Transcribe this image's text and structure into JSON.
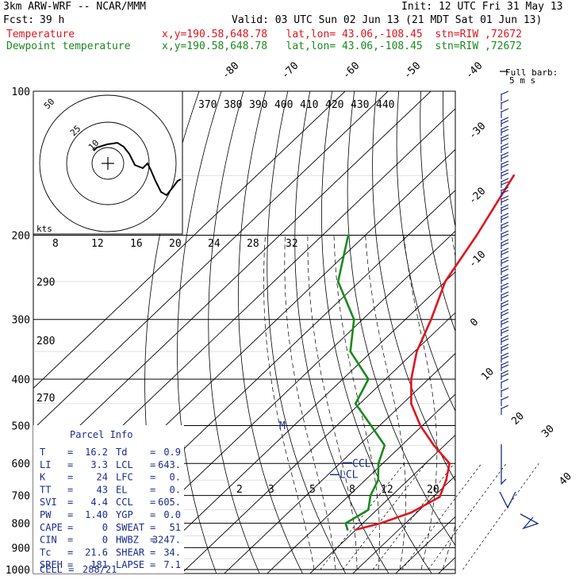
{
  "header": {
    "title": "3km ARW-WRF -- NCAR/MMM",
    "init": "Init: 12 UTC Fri 31 May 13",
    "fcst_label": "Fcst:",
    "fcst_value": "39 h",
    "valid": "Valid: 03 UTC Sun 02 Jun 13 (21 MDT Sat 01 Jun 13)",
    "temp_label": "Temperature",
    "dew_label": "Dewpoint temperature",
    "temp_info": "x,y=190.58,648.78   lat,lon= 43.06,-108.45  stn=RIW ,72672",
    "dew_info": "x,y=190.58,648.78   lat,lon= 43.06,-108.45  stn=RIW ,72672"
  },
  "colors": {
    "temperature": "#e0141e",
    "dewpoint": "#198a1e",
    "text": "#1a2b8c",
    "barb": "#1a2b8c"
  },
  "chart_data": {
    "type": "line",
    "title": "",
    "pressure_ticks": [
      "100",
      "200",
      "300",
      "400",
      "500",
      "600",
      "700",
      "800",
      "900",
      "1000"
    ],
    "isotherm_labels": [
      "-80",
      "-70",
      "-60",
      "-50",
      "-40",
      "-30",
      "-20",
      "-10",
      "0",
      "10",
      "20",
      "30",
      "40"
    ],
    "theta_labels": [
      "370",
      "380",
      "390",
      "400",
      "410",
      "420",
      "430",
      "440"
    ],
    "theta_left_labels": [
      "290",
      "280",
      "270"
    ],
    "mixing_ratio_labels": [
      "2",
      "3",
      "5",
      "8",
      "12",
      "20"
    ],
    "hodograph": {
      "rings_labels": [
        "50",
        "25",
        "10"
      ],
      "speed_axis_label": "kts",
      "speed_ticks": [
        "8",
        "12",
        "16",
        "20",
        "24",
        "28",
        "32"
      ]
    },
    "barb_legend": [
      "Full barb:",
      "5 m s"
    ],
    "ccl_label": "CCL",
    "lcl_label": "LCL",
    "ymarker": "M",
    "series": [
      {
        "key": "temperature",
        "x": [
          -10.0,
          -5.8,
          -1.3,
          1.5,
          -1.1,
          -4.4,
          -12.5,
          -20.5,
          -28.0,
          -34.0,
          -39.5,
          -44.0,
          -50.0,
          -54.0,
          -60.0
        ],
        "y": [
          825,
          800,
          760,
          705,
          650,
          600,
          550,
          500,
          450,
          400,
          350,
          300,
          250,
          200,
          150
        ]
      },
      {
        "key": "dewpoint",
        "x": [
          -12.0,
          -14.0,
          -12.0,
          -15.0,
          -17.0,
          -21.0,
          -24.0,
          -32.0,
          -41.0,
          -44.0,
          -55.0,
          -62.0,
          -75.0,
          -84.0
        ],
        "y": [
          825,
          800,
          750,
          700,
          650,
          600,
          550,
          500,
          450,
          400,
          350,
          300,
          250,
          200
        ]
      }
    ]
  },
  "parcel": {
    "title": "Parcel Info",
    "rows": [
      {
        "k1": "T",
        "v1": "16.2",
        "k2": "Td",
        "v2": "0.9"
      },
      {
        "k1": "LI",
        "v1": "3.3",
        "k2": "LCL",
        "v2": "643."
      },
      {
        "k1": "K",
        "v1": "24",
        "k2": "LFC",
        "v2": "0."
      },
      {
        "k1": "TT",
        "v1": "43",
        "k2": "EL",
        "v2": "0."
      },
      {
        "k1": "SVI",
        "v1": "4.4",
        "k2": "CCL",
        "v2": "605."
      },
      {
        "k1": "PW",
        "v1": "1.40",
        "k2": "YGP",
        "v2": "0.0"
      },
      {
        "k1": "CAPE",
        "v1": "0",
        "k2": "SWEAT",
        "v2": "51"
      },
      {
        "k1": "CIN",
        "v1": "0",
        "k2": "HWBZ",
        "v2": "3247."
      },
      {
        "k1": "Tc",
        "v1": "21.6",
        "k2": "SHEAR",
        "v2": "34."
      },
      {
        "k1": "SREH",
        "v1": "181",
        "k2": "LAPSE",
        "v2": "7.1"
      }
    ],
    "cell_label": "CELL =",
    "cell_value": "288/21"
  }
}
